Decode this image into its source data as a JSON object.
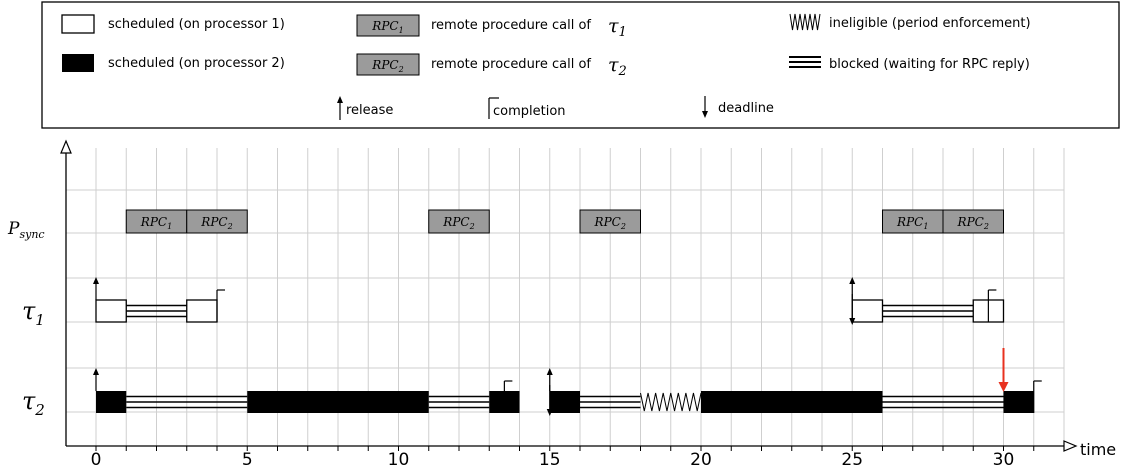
{
  "legend": {
    "sched_p1": "scheduled (on processor 1)",
    "sched_p2": "scheduled (on processor 2)",
    "rpc1_box": "RPC",
    "rpc1_sub": "1",
    "rpc1_desc": "remote procedure call of",
    "rpc1_tau": "τ",
    "rpc1_tau_sub": "1",
    "rpc2_box": "RPC",
    "rpc2_sub": "2",
    "rpc2_desc": "remote procedure call of",
    "rpc2_tau": "τ",
    "rpc2_tau_sub": "2",
    "ineligible": "ineligible (period enforcement)",
    "blocked": "blocked (waiting for RPC reply)",
    "release": "release",
    "completion": "completion",
    "deadline": "deadline"
  },
  "rows": {
    "psync_main": "P",
    "psync_sub": "sync",
    "tau1_main": "τ",
    "tau1_sub": "1",
    "tau2_main": "τ",
    "tau2_sub": "2"
  },
  "axis": {
    "xlabel": "time",
    "ticks": [
      "0",
      "5",
      "10",
      "15",
      "20",
      "25",
      "30"
    ],
    "tick_values": [
      0,
      5,
      10,
      15,
      20,
      25,
      30
    ],
    "xmax": 32
  },
  "rpc_label": "RPC",
  "schedule": {
    "psync": [
      {
        "start": 1,
        "end": 3,
        "rpc": "1"
      },
      {
        "start": 3,
        "end": 5,
        "rpc": "2"
      },
      {
        "start": 11,
        "end": 13,
        "rpc": "2"
      },
      {
        "start": 16,
        "end": 18,
        "rpc": "2"
      },
      {
        "start": 26,
        "end": 28,
        "rpc": "1"
      },
      {
        "start": 28,
        "end": 30,
        "rpc": "2"
      }
    ],
    "tau1": {
      "scheduled_p1": [
        [
          0,
          1
        ],
        [
          3,
          4
        ],
        [
          25,
          26
        ],
        [
          29,
          30
        ]
      ],
      "blocked": [
        [
          1,
          3
        ],
        [
          26,
          29
        ]
      ],
      "releases": [
        0,
        25
      ],
      "completions": [
        4,
        29.5
      ],
      "deadlines": [
        25
      ]
    },
    "tau2": {
      "scheduled_p2": [
        [
          0,
          1
        ],
        [
          5,
          11
        ],
        [
          13,
          14
        ],
        [
          15,
          16
        ],
        [
          20,
          26
        ],
        [
          30,
          31
        ]
      ],
      "blocked": [
        [
          1,
          5
        ],
        [
          11,
          13
        ],
        [
          16,
          18
        ],
        [
          26,
          30
        ]
      ],
      "ineligible": [
        [
          18,
          20
        ]
      ],
      "releases": [
        0,
        15
      ],
      "completions": [
        13.5,
        31
      ],
      "deadlines": [
        15
      ],
      "missed_deadline": 30
    }
  },
  "colors": {
    "rpc_fill": "#9b9b9b",
    "grid": "#cfcfcf",
    "missed_deadline": "#e8311f"
  }
}
